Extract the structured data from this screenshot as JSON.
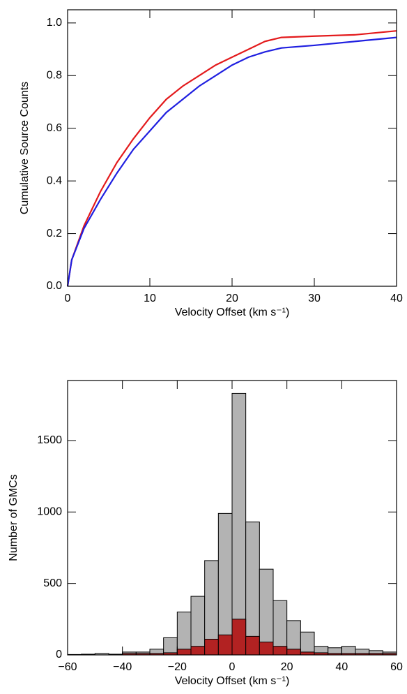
{
  "chart_data": [
    {
      "type": "line",
      "x_label": "Velocity Offset (km s⁻¹)",
      "y_label": "Cumulative Source Counts",
      "xlim": [
        0,
        40
      ],
      "ylim": [
        0,
        1.05
      ],
      "xticks": [
        0,
        10,
        20,
        30,
        40
      ],
      "yticks": [
        {
          "value": 0,
          "label": "0.0"
        },
        {
          "value": 0.2,
          "label": "0.2"
        },
        {
          "value": 0.4,
          "label": "0.4"
        },
        {
          "value": 0.6,
          "label": "0.6"
        },
        {
          "value": 0.8,
          "label": "0.8"
        },
        {
          "value": 1.0,
          "label": "1.0"
        }
      ],
      "x": [
        0,
        0.5,
        2,
        4,
        6,
        8,
        10,
        12,
        14,
        16,
        18,
        20,
        22,
        24,
        26,
        30,
        35,
        40
      ],
      "series": [
        {
          "color": "#e31a1c",
          "values": [
            0,
            0.1,
            0.23,
            0.36,
            0.47,
            0.56,
            0.64,
            0.71,
            0.76,
            0.8,
            0.84,
            0.87,
            0.9,
            0.93,
            0.945,
            0.95,
            0.955,
            0.97
          ]
        },
        {
          "color": "#1f1fe0",
          "values": [
            0,
            0.1,
            0.22,
            0.33,
            0.43,
            0.52,
            0.59,
            0.66,
            0.71,
            0.76,
            0.8,
            0.84,
            0.87,
            0.89,
            0.905,
            0.915,
            0.93,
            0.945
          ]
        }
      ]
    },
    {
      "type": "histogram",
      "x_label": "Velocity Offset (km s⁻¹)",
      "y_label": "Number of GMCs",
      "xlim": [
        -60,
        60
      ],
      "ylim": [
        0,
        1920
      ],
      "xticks": [
        {
          "value": -60,
          "label": "−60"
        },
        {
          "value": -40,
          "label": "−40"
        },
        {
          "value": -20,
          "label": "−20"
        },
        0,
        20,
        40,
        60
      ],
      "yticks": [
        0,
        500,
        1000,
        1500
      ],
      "bins": [
        -60,
        -55,
        -50,
        -45,
        -40,
        -35,
        -30,
        -25,
        -20,
        -15,
        -10,
        -5,
        0,
        5,
        10,
        15,
        20,
        25,
        30,
        35,
        40,
        45,
        50,
        55,
        60
      ],
      "series": [
        {
          "color": "#b3b3b3",
          "values": [
            3,
            5,
            10,
            5,
            20,
            20,
            40,
            120,
            300,
            410,
            660,
            990,
            1830,
            930,
            600,
            380,
            240,
            160,
            60,
            50,
            60,
            40,
            30,
            20
          ]
        },
        {
          "color": "#b22222",
          "values": [
            0,
            0,
            0,
            0,
            10,
            10,
            10,
            15,
            40,
            60,
            110,
            140,
            250,
            130,
            90,
            60,
            40,
            20,
            15,
            10,
            10,
            10,
            10,
            10
          ]
        }
      ]
    }
  ]
}
